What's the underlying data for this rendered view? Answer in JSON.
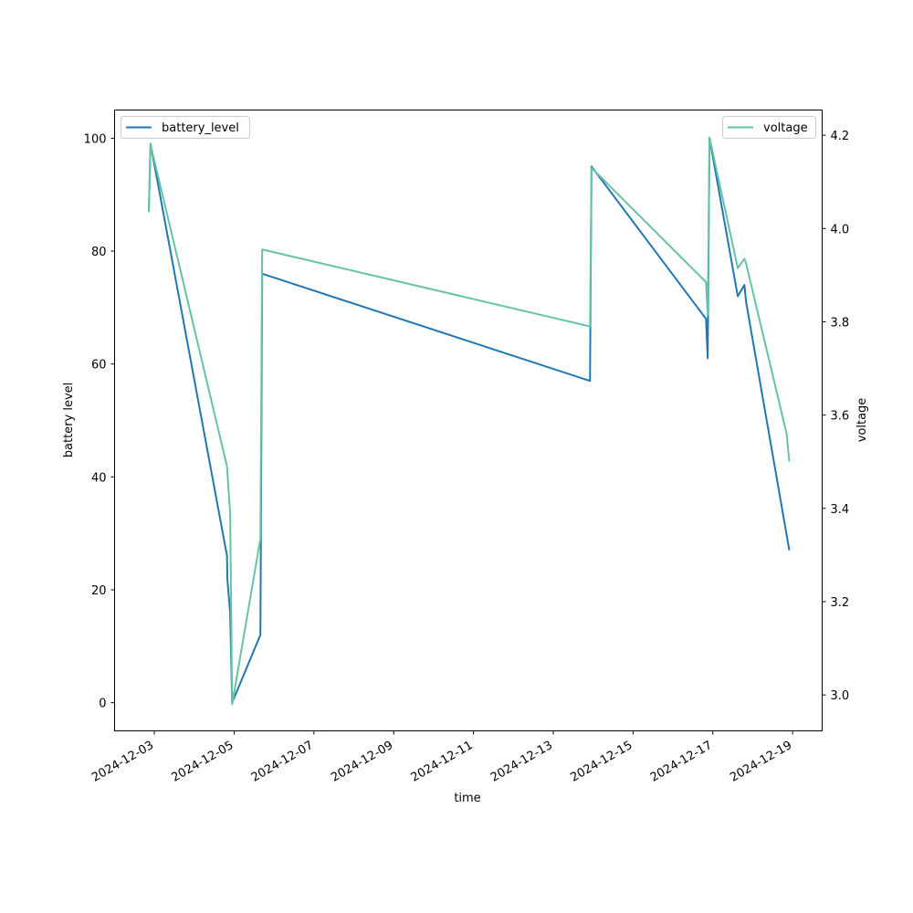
{
  "chart_data": {
    "type": "line",
    "xlabel": "time",
    "ylabel": "battery level",
    "y2label": "voltage",
    "x_ticks": [
      "2024-12-03",
      "2024-12-05",
      "2024-12-07",
      "2024-12-09",
      "2024-12-11",
      "2024-12-13",
      "2024-12-15",
      "2024-12-17",
      "2024-12-19"
    ],
    "x_range": [
      "2024-12-02T00:04:00",
      "2024-12-19T17:46:00"
    ],
    "ylim": [
      -5,
      105
    ],
    "y2lim": [
      2.923,
      4.254
    ],
    "y_ticks": [
      0,
      20,
      40,
      60,
      80,
      100
    ],
    "y2_ticks": [
      3.0,
      3.2,
      3.4,
      3.6,
      3.8,
      4.0,
      4.2
    ],
    "grid": false,
    "series": [
      {
        "name": "battery_level",
        "axis": "left",
        "color": "#1f77b4",
        "legend_position": "upper left",
        "points": [
          [
            "2024-12-02T20:40:00",
            87
          ],
          [
            "2024-12-02T21:42:00",
            99
          ],
          [
            "2024-12-04T19:42:00",
            26
          ],
          [
            "2024-12-04T19:54:00",
            22
          ],
          [
            "2024-12-04T21:00:00",
            18
          ],
          [
            "2024-12-04T21:36:00",
            16
          ],
          [
            "2024-12-04T22:48:00",
            0
          ],
          [
            "2024-12-05T15:48:00",
            12
          ],
          [
            "2024-12-05T16:54:00",
            76
          ],
          [
            "2024-12-13T22:06:00",
            57
          ],
          [
            "2024-12-13T23:00:00",
            95
          ],
          [
            "2024-12-16T19:54:00",
            68
          ],
          [
            "2024-12-16T20:54:00",
            61
          ],
          [
            "2024-12-16T22:00:00",
            100
          ],
          [
            "2024-12-17T15:00:00",
            72
          ],
          [
            "2024-12-17T19:00:00",
            74
          ],
          [
            "2024-12-17T20:00:00",
            71
          ],
          [
            "2024-12-18T22:00:00",
            27
          ]
        ]
      },
      {
        "name": "voltage",
        "axis": "right",
        "color": "#66c2a5",
        "legend_position": "upper right",
        "points": [
          [
            "2024-12-02T20:40:00",
            4.035
          ],
          [
            "2024-12-02T21:42:00",
            4.18
          ],
          [
            "2024-12-04T19:42:00",
            3.49
          ],
          [
            "2024-12-04T21:36:00",
            3.39
          ],
          [
            "2024-12-04T22:48:00",
            2.98
          ],
          [
            "2024-12-05T15:48:00",
            3.335
          ],
          [
            "2024-12-05T16:54:00",
            3.955
          ],
          [
            "2024-12-13T22:06:00",
            3.79
          ],
          [
            "2024-12-13T23:00:00",
            4.13
          ],
          [
            "2024-12-16T19:54:00",
            3.885
          ],
          [
            "2024-12-16T20:54:00",
            3.815
          ],
          [
            "2024-12-16T22:00:00",
            4.195
          ],
          [
            "2024-12-17T15:00:00",
            3.915
          ],
          [
            "2024-12-17T19:00:00",
            3.935
          ],
          [
            "2024-12-17T20:00:00",
            3.925
          ],
          [
            "2024-12-18T20:24:00",
            3.56
          ],
          [
            "2024-12-18T22:00:00",
            3.5
          ]
        ]
      }
    ]
  }
}
